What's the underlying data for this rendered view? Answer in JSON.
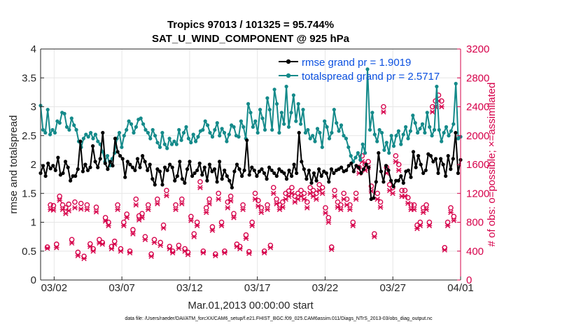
{
  "chart_data": {
    "type": "line",
    "title_line1": "Tropics 97013 / 101325 = 95.744%",
    "title_line2": "SAT_U_WIND_COMPONENT @ 925 hPa",
    "xlabel": "Mar.01,2013 00:00:00 start",
    "ylabel_left": "rmse and totalspread",
    "ylabel_right": "# of obs: o=possible; ×=assimilated",
    "footer": "data file: /Users/raeder/DAI/ATM_forcXX/CAM6_setup/f.e21.FHIST_BGC.f09_025.CAM6assim.011/Diags_NTrS_2013-03/obs_diag_output.nc",
    "xlim": [
      0.5,
      31.5
    ],
    "ylim_left": [
      0,
      4
    ],
    "ylim_right": [
      0,
      3200
    ],
    "x_ticks": [
      1.5,
      6.5,
      11.5,
      16.5,
      21.5,
      26.5,
      31.5
    ],
    "x_tick_labels": [
      "03/02",
      "03/07",
      "03/12",
      "03/17",
      "03/22",
      "03/27",
      "04/01"
    ],
    "y_left_ticks": [
      0,
      0.5,
      1,
      1.5,
      2,
      2.5,
      3,
      3.5,
      4
    ],
    "y_left_tick_labels": [
      "0",
      "0.5",
      "1",
      "1.5",
      "2",
      "2.5",
      "3",
      "3.5",
      "4"
    ],
    "y_right_ticks": [
      0,
      400,
      800,
      1200,
      1600,
      2000,
      2400,
      2800,
      3200
    ],
    "y_right_tick_labels": [
      "0",
      "400",
      "800",
      "1200",
      "1600",
      "2000",
      "2400",
      "2800",
      "3200"
    ],
    "grid": true,
    "legend_position": "top-right",
    "colors": {
      "rmse": "#000000",
      "spread": "#148a8a",
      "obs": "#d6004a",
      "legend_text": "#0b50e0",
      "grid": "#e6e6e6",
      "axis": "#262626"
    },
    "series": [
      {
        "name": "rmse grand pr = 1.9019",
        "axis": "left",
        "values": [
          1.85,
          1.98,
          1.8,
          2.02,
          1.93,
          1.98,
          1.9,
          2.12,
          1.82,
          1.85,
          2.05,
          1.95,
          1.72,
          1.8,
          1.8,
          1.92,
          2.4,
          1.88,
          2.0,
          1.9,
          1.95,
          2.32,
          2.05,
          1.95,
          2.1,
          2.55,
          2.02,
          1.92,
          2.05,
          1.98,
          2.45,
          2.22,
          2.15,
          2.1,
          1.78,
          2.05,
          2.0,
          1.95,
          1.9,
          2.1,
          1.95,
          2.15,
          2.05,
          1.9,
          2.0,
          1.75,
          1.65,
          1.92,
          1.88,
          1.65,
          1.95,
          1.9,
          2.0,
          1.95,
          1.72,
          1.8,
          2.05,
          1.75,
          1.68,
          1.92,
          2.05,
          1.8,
          1.85,
          1.9,
          2.02,
          1.82,
          1.95,
          1.72,
          2.0,
          1.88,
          1.92,
          1.7,
          2.05,
          1.75,
          1.9,
          1.8,
          1.72,
          1.6,
          1.88,
          2.0,
          1.92,
          1.8,
          1.9,
          2.42,
          1.82,
          1.95,
          1.9,
          1.8,
          1.88,
          1.92,
          1.85,
          1.75,
          1.95,
          1.9,
          1.85,
          1.8,
          1.92,
          1.88,
          1.85,
          1.75,
          1.9,
          1.8,
          2.0,
          1.85,
          2.55,
          2.05,
          1.92,
          1.75,
          1.9,
          1.68,
          1.85,
          1.72,
          1.92,
          1.8,
          1.88,
          1.85,
          1.7,
          1.92,
          1.85,
          1.9,
          1.92,
          1.95,
          1.88,
          1.9,
          1.98,
          2.02,
          1.88,
          1.98,
          1.95,
          1.85,
          1.92,
          2.0,
          1.95,
          1.4,
          1.42,
          1.7,
          2.2,
          1.88,
          1.7,
          1.98,
          1.9,
          1.72,
          1.62,
          1.72,
          1.72,
          1.8,
          1.68,
          1.88,
          1.9,
          1.78,
          2.22,
          1.95,
          2.15,
          2.0,
          1.85,
          1.9,
          2.18,
          2.15,
          2.05,
          2.1,
          1.85,
          2.1,
          2.0,
          1.8,
          2.15,
          1.92,
          2.1,
          2.55,
          1.85,
          2.08
        ]
      },
      {
        "name": "totalspread grand pr = 2.5717",
        "axis": "left",
        "values": [
          3.02,
          2.6,
          2.55,
          2.95,
          2.52,
          2.6,
          2.55,
          2.75,
          2.72,
          2.9,
          2.88,
          2.65,
          2.6,
          2.8,
          2.68,
          2.6,
          2.4,
          2.3,
          2.45,
          2.52,
          2.48,
          2.55,
          2.45,
          2.52,
          2.4,
          2.35,
          2.22,
          2.05,
          2.15,
          1.98,
          2.1,
          2.2,
          2.45,
          2.55,
          2.3,
          2.5,
          2.6,
          2.75,
          2.7,
          2.55,
          2.65,
          2.78,
          2.8,
          2.7,
          2.6,
          2.55,
          2.45,
          2.6,
          2.5,
          2.38,
          2.3,
          2.55,
          2.35,
          2.28,
          2.45,
          2.35,
          2.4,
          2.35,
          2.6,
          2.42,
          2.55,
          2.65,
          2.45,
          2.38,
          2.52,
          2.4,
          2.48,
          2.58,
          2.6,
          2.75,
          2.68,
          2.55,
          2.48,
          2.6,
          2.72,
          2.5,
          2.62,
          2.55,
          2.4,
          2.52,
          2.68,
          2.65,
          2.5,
          2.48,
          2.75,
          2.65,
          2.45,
          3.05,
          2.9,
          2.65,
          2.75,
          2.55,
          2.95,
          2.8,
          2.6,
          3.15,
          2.95,
          2.6,
          3.3,
          3.05,
          2.55,
          2.9,
          2.7,
          3.35,
          2.65,
          2.9,
          3.2,
          2.75,
          3.05,
          2.7,
          2.95,
          2.55,
          2.6,
          2.45,
          2.5,
          2.4,
          2.62,
          2.55,
          2.3,
          2.75,
          2.65,
          2.45,
          2.55,
          2.95,
          2.72,
          2.58,
          2.68,
          2.5,
          2.45,
          2.3,
          2.15,
          2.05,
          2.12,
          2.2,
          2.08,
          2.35,
          2.2,
          3.65,
          2.6,
          2.9,
          2.52,
          2.4,
          2.6,
          2.55,
          2.25,
          2.38,
          2.2,
          2.5,
          2.32,
          2.5,
          2.58,
          2.35,
          2.52,
          2.65,
          2.45,
          2.58,
          2.85,
          2.72,
          2.55,
          2.62,
          2.7,
          2.55,
          2.9,
          2.65,
          2.5,
          2.6,
          3.35,
          2.6,
          2.4,
          2.55,
          2.65,
          2.5,
          2.58,
          2.7,
          3.4,
          2.45,
          2.48
        ]
      }
    ],
    "obs_possible": [
      456,
      1040,
      1030,
      496,
      1160,
      1040,
      1000,
      1050,
      560,
      1080,
      384,
      1060,
      328,
      1040,
      500,
      432,
      1008,
      560,
      520,
      864,
      800,
      464,
      536,
      1040,
      432,
      800,
      912,
      400,
      696,
      1120,
      888,
      920,
      600,
      1040,
      360,
      560,
      1120,
      520,
      760,
      1240,
      464,
      400,
      1040,
      480,
      1120,
      432,
      384,
      880,
      640,
      800,
      1360,
      400,
      1000,
      1120,
      736,
      360,
      1200,
      800,
      400,
      1080,
      1160,
      920,
      496,
      464,
      1040,
      624,
      392,
      800,
      1200,
      1100,
      1000,
      400,
      1040,
      480,
      1280,
      1120,
      1040,
      1080,
      1200,
      1232,
      1280,
      1160,
      1200,
      1240,
      1200,
      1080,
      1280,
      1240,
      1200,
      1320,
      1280,
      1000,
      864,
      456,
      1240,
      1080,
      1040,
      1200,
      1120,
      1040,
      800,
      1200,
      1560,
      1720,
      1600,
      1640,
      1300,
      640,
      1200,
      1080,
      2400,
      1560,
      1320,
      1280,
      1720,
      1600,
      1240,
      1240,
      1140,
      1040,
      1040,
      760,
      800,
      1000,
      1040,
      800,
      2400,
      2480,
      2560,
      2480,
      448,
      800,
      1000,
      880
    ],
    "obs_assimilated": [
      440,
      976,
      968,
      448,
      1104,
      976,
      920,
      960,
      512,
      1000,
      336,
      984,
      296,
      976,
      464,
      400,
      944,
      512,
      496,
      816,
      752,
      432,
      496,
      976,
      400,
      752,
      864,
      376,
      640,
      1040,
      832,
      864,
      560,
      976,
      328,
      520,
      1056,
      480,
      720,
      1168,
      432,
      376,
      976,
      440,
      1056,
      400,
      352,
      824,
      600,
      752,
      1280,
      376,
      936,
      1056,
      688,
      336,
      1120,
      752,
      376,
      1000,
      1096,
      864,
      464,
      432,
      976,
      576,
      368,
      752,
      1120,
      1024,
      936,
      376,
      976,
      448,
      1200,
      1056,
      976,
      1008,
      1120,
      1160,
      1200,
      1080,
      1120,
      1160,
      1120,
      1000,
      1200,
      1160,
      1120,
      1240,
      1200,
      928,
      800,
      424,
      1160,
      1008,
      976,
      1120,
      1040,
      976,
      752,
      1120,
      1480,
      1640,
      1520,
      1560,
      1232,
      600,
      1120,
      1008,
      2328,
      1480,
      1240,
      1200,
      1640,
      1520,
      1160,
      1160,
      1064,
      976,
      976,
      712,
      752,
      936,
      976,
      752,
      2328,
      2400,
      2480,
      2400,
      416,
      752,
      936,
      824
    ]
  },
  "legend": {
    "rmse_label": "rmse grand pr = 1.9019",
    "spread_label": "totalspread grand pr = 2.5717"
  }
}
